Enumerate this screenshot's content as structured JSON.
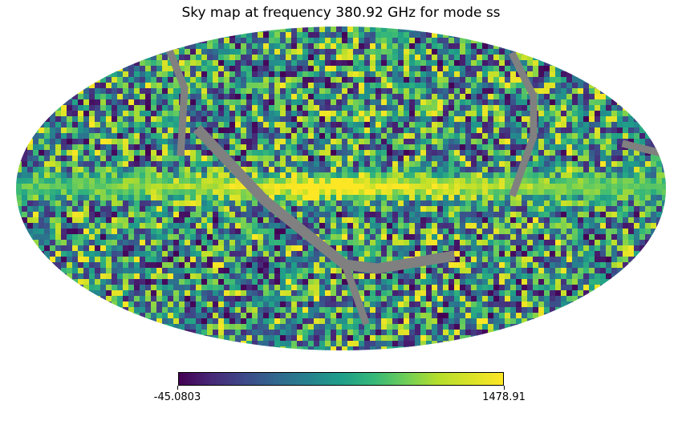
{
  "chart_data": {
    "type": "heatmap",
    "projection": "mollweide",
    "title": "Sky map at frequency 380.92 GHz for mode ss",
    "colormap": "viridis",
    "colorbar": {
      "min": -45.0803,
      "max": 1478.91,
      "min_label": "-45.0803",
      "max_label": "1478.91",
      "orientation": "horizontal",
      "placement": "bottom"
    },
    "colormap_stops": [
      "#440154",
      "#482878",
      "#3e4989",
      "#31688e",
      "#26828e",
      "#1f9e89",
      "#35b779",
      "#6ece58",
      "#b5de2b",
      "#fde725"
    ],
    "masked_color": "#808080",
    "features": [
      "noisy pixelated sky map",
      "bright yellow galactic plane band along the equator",
      "grey masked stripes (unobserved pixels) crossing the sky"
    ]
  }
}
